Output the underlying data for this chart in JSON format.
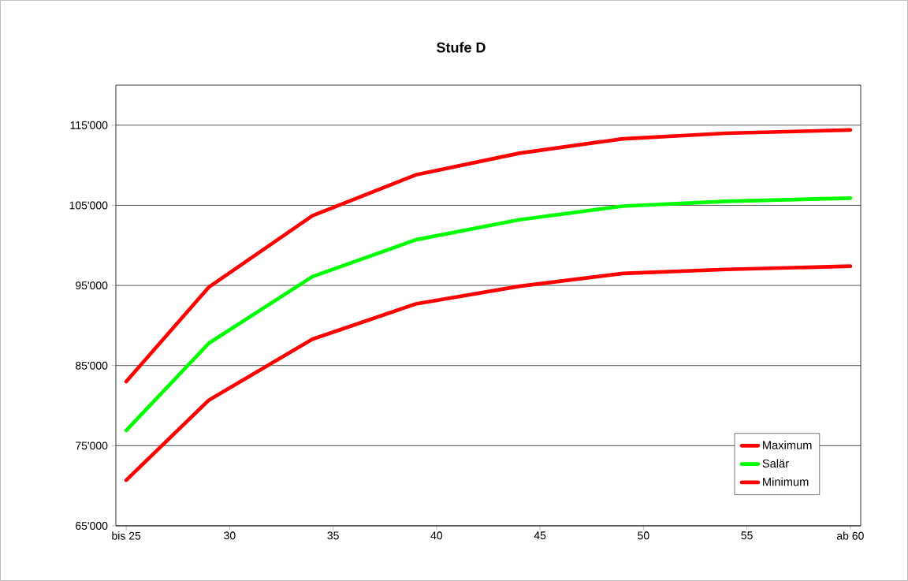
{
  "chart_data": {
    "type": "line",
    "title": "Stufe D",
    "x": [
      25,
      29,
      34,
      39,
      44,
      49,
      54,
      60
    ],
    "xlim": [
      24.5,
      60.5
    ],
    "xticks": [
      {
        "value": 25,
        "label": "bis 25"
      },
      30,
      35,
      40,
      45,
      50,
      55,
      {
        "value": 60,
        "label": "ab 60"
      }
    ],
    "ylim": [
      65000,
      120000
    ],
    "yticks": [
      {
        "value": 65000,
        "label": "65'000"
      },
      {
        "value": 75000,
        "label": "75'000"
      },
      {
        "value": 85000,
        "label": "85'000"
      },
      {
        "value": 95000,
        "label": "95'000"
      },
      {
        "value": 105000,
        "label": "105'000"
      },
      {
        "value": 115000,
        "label": "115'000"
      }
    ],
    "series": [
      {
        "name": "Maximum",
        "color": "#ff0000",
        "values": [
          83000,
          94800,
          103700,
          108800,
          111500,
          113300,
          114000,
          114400
        ]
      },
      {
        "name": "Salär",
        "color": "#00ff00",
        "values": [
          76900,
          87800,
          96100,
          100700,
          103200,
          104900,
          105500,
          105900
        ]
      },
      {
        "name": "Minimum",
        "color": "#ff0000",
        "values": [
          70700,
          80700,
          88300,
          92700,
          94900,
          96500,
          97000,
          97400
        ]
      }
    ],
    "grid": "y",
    "legend": "bottom right"
  }
}
